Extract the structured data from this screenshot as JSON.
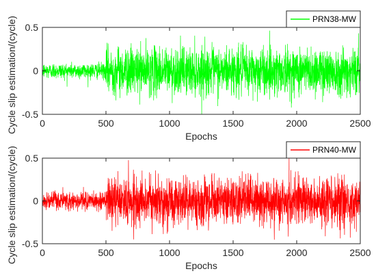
{
  "chart_data": [
    {
      "type": "line",
      "series": [
        {
          "name": "PRN38-MW",
          "color": "#00ff00",
          "amplitude_epochs_0_500": 0.06,
          "amplitude_epochs_500_2500": 0.18,
          "mean": 0.0
        }
      ],
      "xlabel": "Epochs",
      "ylabel": "Cycle slip estimation/(cycle)",
      "xlim": [
        0,
        2500
      ],
      "ylim": [
        -0.5,
        0.5
      ],
      "xticks": [
        "0",
        "500",
        "1000",
        "1500",
        "2000",
        "2500"
      ],
      "yticks": [
        "0.5",
        "0",
        "-0.5"
      ],
      "n_points": 2500,
      "legend_position": "top-right",
      "grid": false
    },
    {
      "type": "line",
      "series": [
        {
          "name": "PRN40-MW",
          "color": "#ff0000",
          "amplitude_epochs_0_500": 0.07,
          "amplitude_epochs_500_2500": 0.18,
          "mean": 0.0
        }
      ],
      "xlabel": "Epochs",
      "ylabel": "Cycle slip estimation/(cycle)",
      "xlim": [
        0,
        2500
      ],
      "ylim": [
        -0.5,
        0.5
      ],
      "xticks": [
        "0",
        "500",
        "1000",
        "1500",
        "2000",
        "2500"
      ],
      "yticks": [
        "0.5",
        "0",
        "-0.5"
      ],
      "n_points": 2500,
      "legend_position": "top-right",
      "grid": false
    }
  ]
}
